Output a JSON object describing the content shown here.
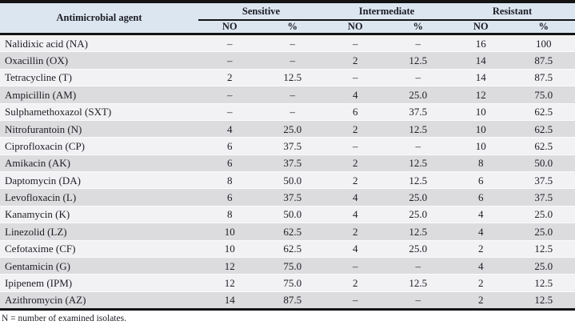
{
  "table": {
    "agent_header": "Antimicrobial agent",
    "groups": [
      "Sensitive",
      "Intermediate",
      "Resistant"
    ],
    "subheaders": [
      "NO",
      "%",
      "NO",
      "%",
      "NO",
      "%"
    ],
    "rows": [
      {
        "agent": "Nalidixic acid (NA)",
        "values": [
          "–",
          "–",
          "–",
          "–",
          "16",
          "100"
        ]
      },
      {
        "agent": "Oxacillin (OX)",
        "values": [
          "–",
          "–",
          "2",
          "12.5",
          "14",
          "87.5"
        ]
      },
      {
        "agent": "Tetracycline (T)",
        "values": [
          "2",
          "12.5",
          "–",
          "–",
          "14",
          "87.5"
        ]
      },
      {
        "agent": "Ampicillin (AM)",
        "values": [
          "–",
          "–",
          "4",
          "25.0",
          "12",
          "75.0"
        ]
      },
      {
        "agent": "Sulphamethoxazol (SXT)",
        "values": [
          "–",
          "–",
          "6",
          "37.5",
          "10",
          "62.5"
        ]
      },
      {
        "agent": "Nitrofurantoin (N)",
        "values": [
          "4",
          "25.0",
          "2",
          "12.5",
          "10",
          "62.5"
        ]
      },
      {
        "agent": "Ciprofloxacin (CP)",
        "values": [
          "6",
          "37.5",
          "–",
          "–",
          "10",
          "62.5"
        ]
      },
      {
        "agent": "Amikacin (AK)",
        "values": [
          "6",
          "37.5",
          "2",
          "12.5",
          "8",
          "50.0"
        ]
      },
      {
        "agent": "Daptomycin (DA)",
        "values": [
          "8",
          "50.0",
          "2",
          "12.5",
          "6",
          "37.5"
        ]
      },
      {
        "agent": "Levofloxacin (L)",
        "values": [
          "6",
          "37.5",
          "4",
          "25.0",
          "6",
          "37.5"
        ]
      },
      {
        "agent": "Kanamycin (K)",
        "values": [
          "8",
          "50.0",
          "4",
          "25.0",
          "4",
          "25.0"
        ]
      },
      {
        "agent": "Linezolid (LZ)",
        "values": [
          "10",
          "62.5",
          "2",
          "12.5",
          "4",
          "25.0"
        ]
      },
      {
        "agent": "Cefotaxime (CF)",
        "values": [
          "10",
          "62.5",
          "4",
          "25.0",
          "2",
          "12.5"
        ]
      },
      {
        "agent": "Gentamicin (G)",
        "values": [
          "12",
          "75.0",
          "–",
          "–",
          "4",
          "25.0"
        ]
      },
      {
        "agent": "Ipipenem (IPM)",
        "values": [
          "12",
          "75.0",
          "2",
          "12.5",
          "2",
          "12.5"
        ]
      },
      {
        "agent": "Azithromycin (AZ)",
        "values": [
          "14",
          "87.5",
          "–",
          "–",
          "2",
          "12.5"
        ]
      }
    ],
    "footnote": "N = number of examined isolates."
  },
  "colors": {
    "header_bg": "#dce6f1",
    "row_light": "#f2f2f4",
    "row_dark": "#dcdcde",
    "rule": "#141414",
    "text": "#1c1c24"
  }
}
